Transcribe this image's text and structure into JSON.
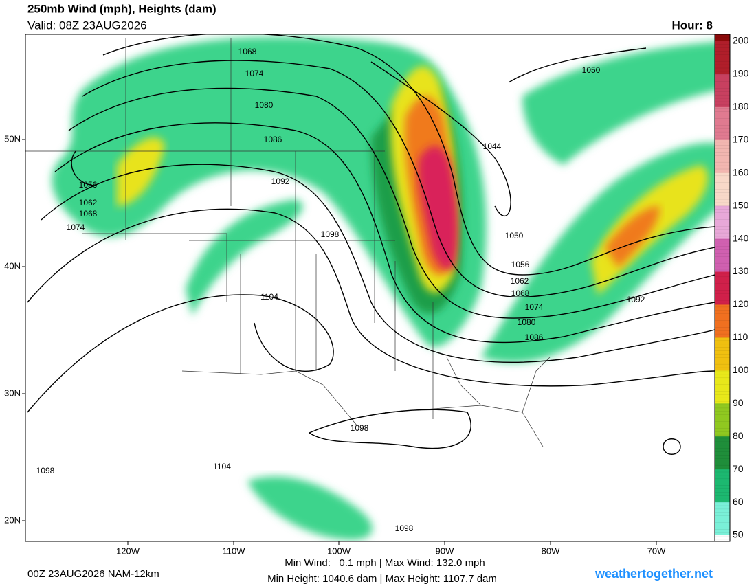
{
  "header": {
    "title": "250mb Wind (mph), Heights (dam)",
    "valid": "Valid: 08Z 23AUG2026",
    "hour": "Hour: 8"
  },
  "map": {
    "latitude_labels": [
      "50N",
      "40N",
      "30N",
      "20N"
    ],
    "longitude_labels": [
      "120W",
      "110W",
      "100W",
      "90W",
      "80W",
      "70W"
    ],
    "contour_labels": [
      "1068",
      "1074",
      "1080",
      "1086",
      "1092",
      "1098",
      "1104",
      "1044",
      "1050",
      "1056",
      "1062",
      "1068",
      "1074",
      "1050",
      "1056",
      "1062",
      "1068",
      "1074",
      "1080",
      "1086",
      "1092",
      "1098",
      "1098",
      "1104",
      "1098"
    ]
  },
  "colorbar": {
    "labels": [
      "200",
      "190",
      "180",
      "170",
      "160",
      "150",
      "140",
      "130",
      "120",
      "110",
      "100",
      "90",
      "80",
      "70",
      "60",
      "50"
    ]
  },
  "footer": {
    "run": "00Z 23AUG2026 NAM-12km",
    "wind_stats": "Min Wind:   0.1 mph | Max Wind: 132.0 mph",
    "height_stats": "Min Height: 1040.6 dam | Max Height: 1107.7 dam",
    "site": "weathertogether.net"
  }
}
